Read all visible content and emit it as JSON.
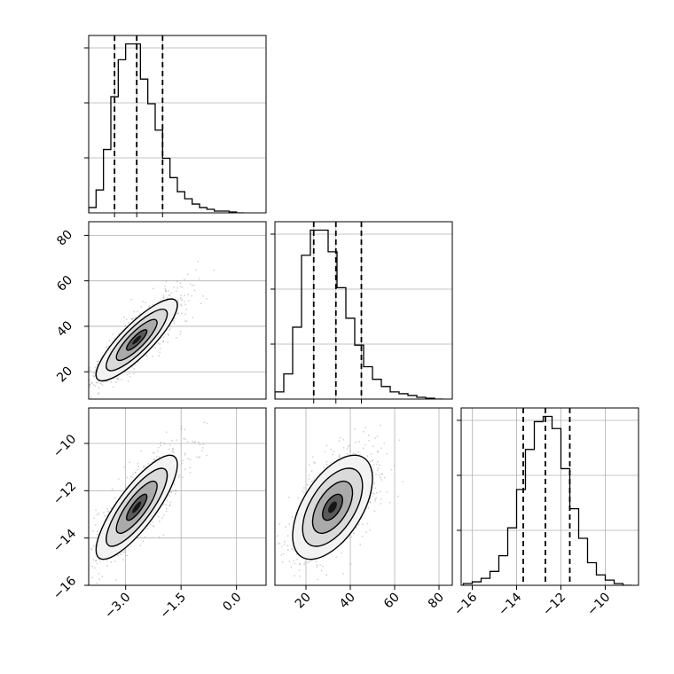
{
  "chart_data": {
    "type": "corner",
    "title": "",
    "grid": true,
    "panels": [
      {
        "id": "hist-0",
        "type": "histogram",
        "variable_index": 0,
        "xlim": [
          -4.0,
          0.8
        ],
        "quantile_lines": [
          -3.3,
          -2.7,
          -2.0
        ],
        "bin_edges": [
          -4.0,
          -3.8,
          -3.6,
          -3.4,
          -3.2,
          -3.0,
          -2.8,
          -2.6,
          -2.4,
          -2.2,
          -2.0,
          -1.8,
          -1.6,
          -1.4,
          -1.2,
          -1.0,
          -0.8,
          -0.6,
          -0.4,
          -0.2,
          0.0,
          0.2
        ],
        "counts": [
          0.03,
          0.13,
          0.36,
          0.66,
          0.87,
          0.96,
          0.96,
          0.76,
          0.62,
          0.47,
          0.31,
          0.2,
          0.12,
          0.08,
          0.05,
          0.03,
          0.02,
          0.01,
          0.01,
          0.005,
          0.0
        ],
        "yticks_count": 3,
        "xtick_labels_shown": false
      },
      {
        "id": "scatter-1-0",
        "type": "density2d",
        "xlim": [
          -4.0,
          0.8
        ],
        "ylim": [
          8,
          86
        ],
        "yticks": [
          20,
          40,
          60,
          80
        ],
        "ytick_labels": [
          "20",
          "40",
          "60",
          "80"
        ],
        "mean": [
          -2.7,
          34
        ],
        "sd": [
          0.55,
          9
        ],
        "corr": 0.85
      },
      {
        "id": "hist-1",
        "type": "histogram",
        "variable_index": 1,
        "xlim": [
          6,
          86
        ],
        "quantile_lines": [
          23.5,
          33.5,
          45
        ],
        "bin_edges": [
          6,
          10,
          14,
          18,
          22,
          26,
          30,
          34,
          38,
          42,
          46,
          50,
          54,
          58,
          62,
          66,
          70,
          74,
          78,
          82
        ],
        "counts": [
          0.04,
          0.14,
          0.4,
          0.8,
          0.94,
          0.94,
          0.82,
          0.62,
          0.45,
          0.3,
          0.18,
          0.11,
          0.07,
          0.04,
          0.03,
          0.02,
          0.01,
          0.005,
          0.0
        ],
        "yticks_count": 3,
        "xtick_labels_shown": false
      },
      {
        "id": "scatter-2-0",
        "type": "density2d",
        "xlim": [
          -4.0,
          0.8
        ],
        "ylim": [
          -16,
          -8.5
        ],
        "xticks": [
          -3.0,
          -1.5,
          0.0
        ],
        "xtick_labels": [
          "−3.0",
          "−1.5",
          "0.0"
        ],
        "yticks": [
          -16,
          -14,
          -12,
          -10
        ],
        "ytick_labels": [
          "−16",
          "−14",
          "−12",
          "−10"
        ],
        "mean": [
          -2.7,
          -12.7
        ],
        "sd": [
          0.55,
          1.1
        ],
        "corr": 0.82
      },
      {
        "id": "scatter-2-1",
        "type": "density2d",
        "xlim": [
          6,
          86
        ],
        "ylim": [
          -16,
          -8.5
        ],
        "xticks": [
          20,
          40,
          60,
          80
        ],
        "xtick_labels": [
          "20",
          "40",
          "60",
          "80"
        ],
        "mean": [
          32,
          -12.7
        ],
        "sd": [
          9,
          1.1
        ],
        "corr": 0.55
      },
      {
        "id": "hist-2",
        "type": "histogram",
        "variable_index": 2,
        "xlim": [
          -16.5,
          -8.5
        ],
        "quantile_lines": [
          -13.7,
          -12.7,
          -11.6
        ],
        "bin_edges": [
          -16.4,
          -16.0,
          -15.6,
          -15.2,
          -14.8,
          -14.4,
          -14.0,
          -13.6,
          -13.2,
          -12.8,
          -12.4,
          -12.0,
          -11.6,
          -11.2,
          -10.8,
          -10.4,
          -10.0,
          -9.6,
          -9.2,
          -8.8
        ],
        "counts": [
          0.01,
          0.02,
          0.04,
          0.08,
          0.17,
          0.33,
          0.55,
          0.78,
          0.94,
          0.97,
          0.9,
          0.67,
          0.44,
          0.27,
          0.13,
          0.06,
          0.03,
          0.01,
          0.0
        ],
        "xticks": [
          -16,
          -14,
          -12,
          -10
        ],
        "xtick_labels": [
          "−16",
          "−14",
          "−12",
          "−10"
        ],
        "yticks_count": 3
      }
    ]
  },
  "style": {
    "line_color": "#000000",
    "grid_color": "#b0b0b0",
    "axis_color": "#000000",
    "dot_color": "#7f7f7f"
  }
}
